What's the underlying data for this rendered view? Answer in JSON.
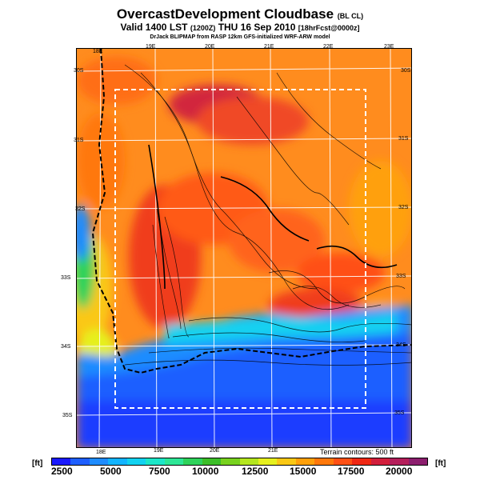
{
  "header": {
    "title": "OvercastDevelopment Cloudbase",
    "title_suffix": "(BL CL)",
    "valid": "Valid 1400 LST",
    "valid_utc": "(1200Z)",
    "valid_date": "THU 16 Sep 2010",
    "forecast": "[18hrFcst@0000z]",
    "credit": "DrJack BLIPMAP from RASP 12km GFS-initialized WRF-ARW model"
  },
  "map": {
    "lon_labels_top": [
      "18E",
      "19E",
      "20E",
      "21E",
      "22E",
      "23E"
    ],
    "lon_labels_bottom": [
      "18E",
      "19E",
      "20E",
      "21E"
    ],
    "lat_labels_left": [
      "30S",
      "31S",
      "32S",
      "33S",
      "34S",
      "35S"
    ],
    "lat_labels_right": [
      "30S",
      "31S",
      "32S",
      "33S",
      "34S",
      "35S"
    ]
  },
  "colorbar": {
    "unit_left": "[ft]",
    "unit_right": "[ft]",
    "ticks": [
      "2500",
      "5000",
      "7500",
      "10000",
      "12500",
      "15000",
      "17500",
      "20000"
    ],
    "colors": [
      "#1a1aff",
      "#1e5fff",
      "#1e8cff",
      "#12b4ff",
      "#12d2f0",
      "#1ce6c8",
      "#2de696",
      "#2ed25a",
      "#3cbe28",
      "#78d21e",
      "#b4e61e",
      "#e6f01e",
      "#fac814",
      "#ffa00a",
      "#ff780a",
      "#ff5014",
      "#f02814",
      "#d21e3c",
      "#b41e5a",
      "#8c1e6e"
    ]
  },
  "terrain_note": "Terrain contours: 500 ft"
}
